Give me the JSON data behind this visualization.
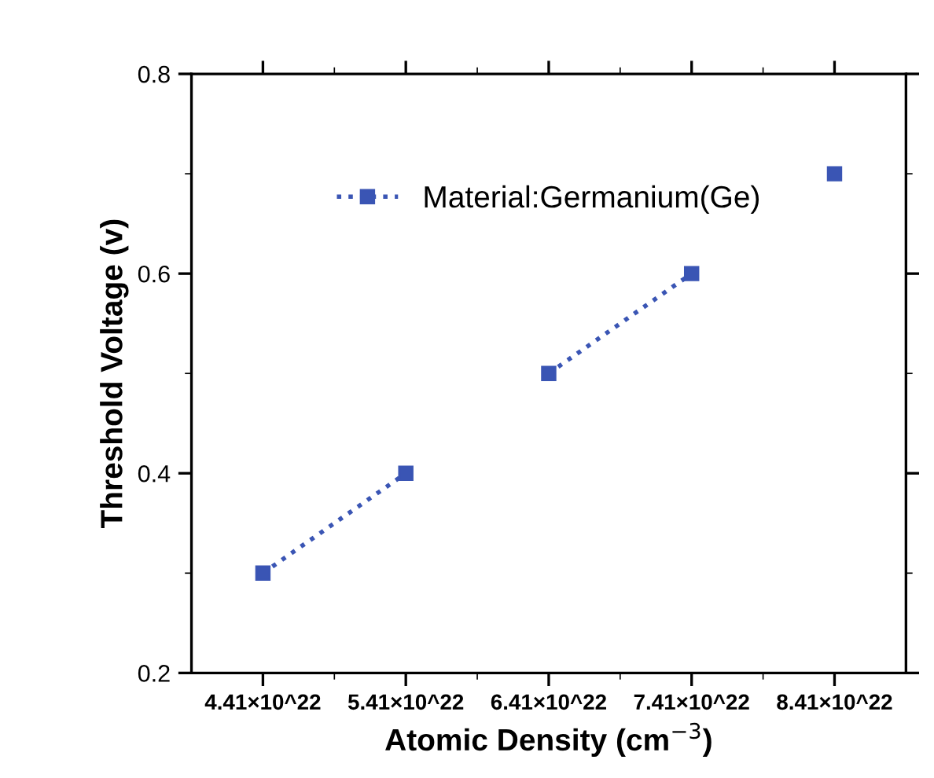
{
  "chart_data": {
    "type": "scatter",
    "xlabel": "Atomic Density (cm$^{−3}$)",
    "ylabel": "Threshold Voltage (v)",
    "categories": [
      "4.41×10^22",
      "5.41×10^22",
      "6.41×10^22",
      "7.41×10^22",
      "8.41×10^22"
    ],
    "series": [
      {
        "name": "Material:Germanium(Ge)",
        "color": "#3a55b4",
        "marker": "square",
        "values": [
          0.3,
          0.4,
          0.5,
          0.6,
          0.7
        ]
      },
      {
        "type": "line",
        "color": "#3a55b4",
        "marker": "none",
        "values": [
          0.3,
          0.4,
          null,
          null,
          null
        ]
      },
      {
        "type": "line",
        "color": "#3a55b4",
        "marker": "none",
        "values": [
          null,
          null,
          0.5,
          0.6,
          null
        ]
      }
    ],
    "ylim": [
      0.2,
      0.8
    ],
    "yticks": [
      0.2,
      0.4,
      0.6,
      0.8
    ],
    "line_style": "dotted",
    "legend": "top",
    "grid": false
  }
}
